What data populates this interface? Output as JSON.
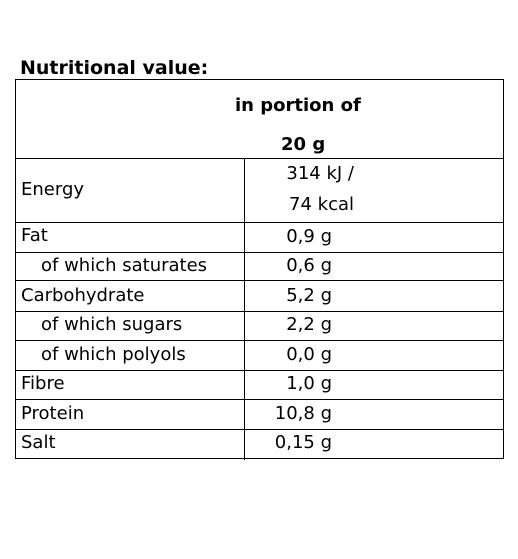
{
  "title": "Nutritional value:",
  "header": {
    "line1": "in portion of",
    "line2": "20 g"
  },
  "rows": [
    {
      "label": "Energy",
      "value_line1": "314 kJ /",
      "value_line2": "74 kcal"
    },
    {
      "label": "Fat",
      "value": "0,9 g"
    },
    {
      "label": "of which saturates",
      "value": "0,6 g"
    },
    {
      "label": "Carbohydrate",
      "value": "5,2 g"
    },
    {
      "label": "of which sugars",
      "value": "2,2 g"
    },
    {
      "label": "of which polyols",
      "value": "0,0 g"
    },
    {
      "label": "Fibre",
      "value": "1,0 g"
    },
    {
      "label": "Protein",
      "value": "10,8 g"
    },
    {
      "label": "Salt",
      "value": "0,15 g"
    }
  ]
}
